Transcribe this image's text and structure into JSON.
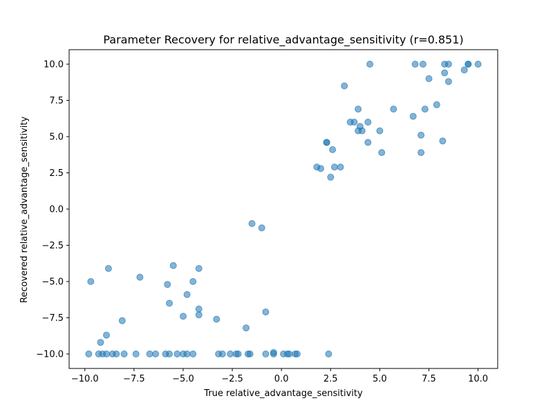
{
  "chart_data": {
    "type": "scatter",
    "title": "Parameter Recovery for relative_advantage_sensitivity (r=0.851)",
    "xlabel": "True relative_advantage_sensitivity",
    "ylabel": "Recovered relative_advantage_sensitivity",
    "xlim": [
      -10.8,
      11.0
    ],
    "ylim": [
      -11.0,
      11.0
    ],
    "grid": false,
    "legend": false,
    "marker_color": "#1f77b4",
    "marker_alpha": 0.55,
    "xticks": [
      {
        "value": -10.0,
        "label": "−10.0"
      },
      {
        "value": -7.5,
        "label": "−7.5"
      },
      {
        "value": -5.0,
        "label": "−5.0"
      },
      {
        "value": -2.5,
        "label": "−2.5"
      },
      {
        "value": 0.0,
        "label": "0.0"
      },
      {
        "value": 2.5,
        "label": "2.5"
      },
      {
        "value": 5.0,
        "label": "5.0"
      },
      {
        "value": 7.5,
        "label": "7.5"
      },
      {
        "value": 10.0,
        "label": "10.0"
      }
    ],
    "yticks": [
      {
        "value": 10.0,
        "label": "10.0"
      },
      {
        "value": 7.5,
        "label": "7.5"
      },
      {
        "value": 5.0,
        "label": "5.0"
      },
      {
        "value": 2.5,
        "label": "2.5"
      },
      {
        "value": 0.0,
        "label": "0.0"
      },
      {
        "value": -2.5,
        "label": "−2.5"
      },
      {
        "value": -5.0,
        "label": "−5.0"
      },
      {
        "value": -7.5,
        "label": "−7.5"
      },
      {
        "value": -10.0,
        "label": "−10.0"
      }
    ],
    "points": [
      [
        -9.8,
        -10.0
      ],
      [
        -9.7,
        -5.0
      ],
      [
        -9.3,
        -10.0
      ],
      [
        -9.2,
        -9.2
      ],
      [
        -9.1,
        -10.0
      ],
      [
        -8.9,
        -8.7
      ],
      [
        -8.9,
        -10.0
      ],
      [
        -8.8,
        -4.1
      ],
      [
        -8.6,
        -10.0
      ],
      [
        -8.4,
        -10.0
      ],
      [
        -8.1,
        -7.7
      ],
      [
        -8.0,
        -10.0
      ],
      [
        -7.4,
        -10.0
      ],
      [
        -7.2,
        -4.7
      ],
      [
        -6.7,
        -10.0
      ],
      [
        -6.4,
        -10.0
      ],
      [
        -5.9,
        -10.0
      ],
      [
        -5.8,
        -5.2
      ],
      [
        -5.7,
        -6.5
      ],
      [
        -5.7,
        -10.0
      ],
      [
        -5.5,
        -3.9
      ],
      [
        -5.3,
        -10.0
      ],
      [
        -5.0,
        -7.4
      ],
      [
        -5.0,
        -10.0
      ],
      [
        -4.8,
        -5.9
      ],
      [
        -4.8,
        -10.0
      ],
      [
        -4.5,
        -5.0
      ],
      [
        -4.5,
        -10.0
      ],
      [
        -4.2,
        -4.1
      ],
      [
        -4.2,
        -6.9
      ],
      [
        -4.2,
        -7.3
      ],
      [
        -3.3,
        -7.6
      ],
      [
        -3.2,
        -10.0
      ],
      [
        -3.0,
        -10.0
      ],
      [
        -2.6,
        -10.0
      ],
      [
        -2.3,
        -10.0
      ],
      [
        -2.2,
        -10.0
      ],
      [
        -1.8,
        -8.2
      ],
      [
        -1.7,
        -10.0
      ],
      [
        -1.5,
        -1.0
      ],
      [
        -1.6,
        -10.0
      ],
      [
        -1.0,
        -1.3
      ],
      [
        -0.8,
        -7.1
      ],
      [
        -0.8,
        -10.0
      ],
      [
        -0.4,
        -10.0
      ],
      [
        -0.4,
        -9.9
      ],
      [
        0.1,
        -10.0
      ],
      [
        0.3,
        -10.0
      ],
      [
        0.4,
        -10.0
      ],
      [
        0.7,
        -10.0
      ],
      [
        0.8,
        -10.0
      ],
      [
        1.8,
        2.9
      ],
      [
        2.0,
        2.8
      ],
      [
        2.3,
        4.6
      ],
      [
        2.3,
        4.6
      ],
      [
        2.4,
        -10.0
      ],
      [
        2.5,
        2.2
      ],
      [
        2.6,
        4.1
      ],
      [
        2.7,
        2.9
      ],
      [
        3.0,
        2.9
      ],
      [
        3.2,
        8.5
      ],
      [
        3.5,
        6.0
      ],
      [
        3.7,
        6.0
      ],
      [
        3.9,
        5.4
      ],
      [
        3.9,
        6.9
      ],
      [
        4.0,
        5.7
      ],
      [
        4.1,
        5.4
      ],
      [
        4.4,
        4.6
      ],
      [
        4.4,
        6.0
      ],
      [
        4.5,
        10.0
      ],
      [
        5.0,
        5.4
      ],
      [
        5.1,
        3.9
      ],
      [
        5.7,
        6.9
      ],
      [
        6.7,
        6.4
      ],
      [
        6.8,
        10.0
      ],
      [
        7.1,
        5.1
      ],
      [
        7.1,
        3.9
      ],
      [
        7.2,
        10.0
      ],
      [
        7.3,
        6.9
      ],
      [
        7.5,
        9.0
      ],
      [
        7.9,
        7.2
      ],
      [
        8.2,
        4.7
      ],
      [
        8.3,
        9.4
      ],
      [
        8.3,
        10.0
      ],
      [
        8.5,
        8.8
      ],
      [
        8.5,
        10.0
      ],
      [
        9.3,
        9.6
      ],
      [
        9.5,
        10.0
      ],
      [
        9.5,
        10.0
      ],
      [
        10.0,
        10.0
      ]
    ]
  }
}
